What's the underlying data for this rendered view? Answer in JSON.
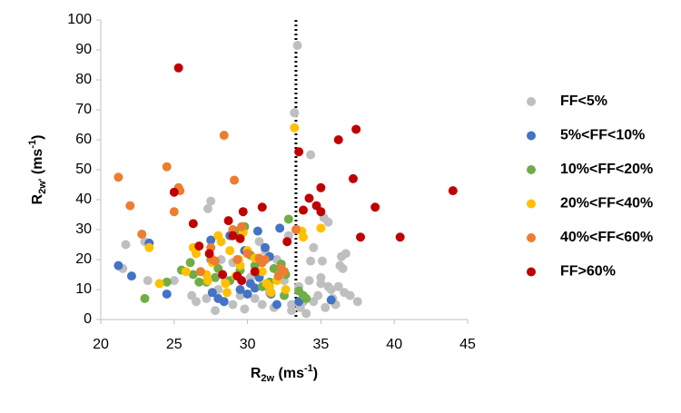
{
  "chart_data": {
    "type": "scatter",
    "xlabel": [
      "R",
      "2w",
      " (ms",
      "-1",
      ")"
    ],
    "ylabel": [
      "R",
      "2w'",
      " (ms",
      "-1",
      ")"
    ],
    "xlim": [
      20,
      45
    ],
    "xticks": [
      20,
      25,
      30,
      35,
      40,
      45
    ],
    "ylim": [
      0,
      100
    ],
    "yticks": [
      0,
      10,
      20,
      30,
      40,
      50,
      60,
      70,
      80,
      90,
      100
    ],
    "vline": 33.3,
    "legend": "right",
    "series": [
      {
        "name": "FF<5%",
        "color": "#bfbfbf",
        "x": [
          21.5,
          21.7,
          23,
          23.2,
          25,
          26.2,
          26.5,
          27.3,
          27.5,
          27.8,
          28,
          28.5,
          29,
          29.5,
          29.8,
          30.5,
          30.8,
          31,
          31.2,
          31.5,
          31.8,
          32,
          32.3,
          32.5,
          33,
          33.2,
          33.4,
          33.6,
          33.8,
          34,
          34.2,
          34.3,
          34.5,
          34.3,
          34.8,
          35,
          35.1,
          35.2,
          35.5,
          35.3,
          35.7,
          35.8,
          36,
          36.2,
          36.3,
          36.4,
          36.5,
          36.6,
          36.7,
          37,
          37.5,
          35,
          34.5,
          33,
          32.8,
          33.5,
          35.5,
          31.5,
          30.2,
          29,
          28.2,
          27.2
        ],
        "values": [
          17,
          25,
          26,
          13,
          13,
          8,
          6,
          37,
          39.5,
          3,
          10,
          13,
          5,
          8,
          3.5,
          7,
          26,
          5,
          23,
          10,
          4,
          20,
          16,
          13,
          3,
          69,
          91.5,
          4,
          6,
          2,
          13,
          19.5,
          24,
          55,
          8,
          12,
          19.5,
          34,
          32.5,
          4,
          10,
          7,
          5,
          11,
          18,
          21,
          17,
          9,
          22,
          8,
          6,
          14,
          6,
          5,
          28,
          11,
          11,
          9,
          14,
          19,
          20,
          7
        ]
      },
      {
        "name": "5%<FF<10%",
        "color": "#4472c4",
        "x": [
          21.2,
          22.1,
          23.3,
          24.5,
          27.5,
          27.6,
          28,
          28.4,
          29.5,
          30,
          30.2,
          30.5,
          30.7,
          30.8,
          31.2,
          31.5,
          31.6,
          32,
          32.2,
          32.5,
          33.5,
          35.7,
          29.8,
          28.8
        ],
        "values": [
          18,
          14.5,
          25.5,
          8.5,
          26.5,
          9,
          7,
          6,
          10,
          8.5,
          12,
          10.5,
          29.5,
          14,
          24,
          21,
          8.5,
          5,
          30.5,
          16,
          6,
          6.5,
          23,
          28
        ]
      },
      {
        "name": "10%<FF<20%",
        "color": "#70ad47",
        "x": [
          23,
          24.5,
          25.5,
          26.1,
          26.3,
          26.7,
          27.2,
          27.5,
          27.8,
          28,
          28.8,
          29.2,
          29.5,
          29.8,
          30.2,
          30.5,
          31,
          31.5,
          31.8,
          32.3,
          32.5,
          32.8,
          33.5,
          33.8,
          34,
          32.6
        ],
        "values": [
          7,
          12.5,
          16.5,
          19,
          15,
          12.5,
          12.5,
          20,
          14,
          17,
          13,
          29.5,
          16.5,
          31,
          21.5,
          18,
          11,
          12.5,
          17,
          18.5,
          8,
          33.5,
          9.5,
          8,
          7,
          15
        ]
      },
      {
        "name": "20%<FF<40%",
        "color": "#ffc000",
        "x": [
          23.3,
          24,
          25.8,
          26.3,
          26.5,
          27.2,
          27.3,
          27.6,
          28,
          28.2,
          28.5,
          28.6,
          28.8,
          29.2,
          29.4,
          29.5,
          29.7,
          30,
          30.5,
          31,
          31.3,
          31.5,
          31.6,
          32,
          32.2,
          32.6,
          33.2,
          33.4,
          35,
          33.8,
          33.7
        ],
        "values": [
          24,
          12,
          16,
          24,
          22,
          15,
          13,
          19,
          28,
          26,
          12,
          9,
          23,
          14.5,
          20,
          18,
          29,
          23,
          20.5,
          16,
          12,
          11,
          9,
          13,
          15,
          10,
          64,
          30,
          30.5,
          27.5,
          29.5
        ]
      },
      {
        "name": "40%<FF<60%",
        "color": "#ed7d31",
        "x": [
          21.2,
          22,
          22.8,
          24.5,
          25,
          25.3,
          25.4,
          26.8,
          27.5,
          27.6,
          27.8,
          28.4,
          29,
          29.1,
          29.3,
          29.6,
          30,
          30.8,
          31,
          31.2,
          32.1,
          32.3,
          32.5,
          33.3
        ],
        "values": [
          47.5,
          38,
          28.5,
          51,
          36,
          44,
          43,
          16,
          24,
          20,
          19.5,
          61.5,
          30,
          46.5,
          20,
          31,
          22,
          20.5,
          19,
          20,
          14.5,
          17,
          16,
          30
        ]
      },
      {
        "name": "FF>60%",
        "color": "#c00000",
        "x": [
          25.3,
          25,
          26.3,
          26.7,
          27.4,
          28.3,
          28.7,
          29,
          29.3,
          29.5,
          29.6,
          29.7,
          30.5,
          31,
          32.7,
          33.5,
          33.8,
          34.2,
          34.7,
          35,
          35,
          36.2,
          37.2,
          37.4,
          37.7,
          38.7,
          40.4,
          44
        ],
        "values": [
          84,
          42.5,
          32,
          24.5,
          22,
          15,
          33,
          28,
          14.5,
          27,
          13,
          36,
          16,
          37.5,
          26,
          56,
          36.5,
          40.5,
          38,
          44,
          36,
          60,
          47,
          63.5,
          27.5,
          37.5,
          27.5,
          43
        ]
      }
    ]
  }
}
